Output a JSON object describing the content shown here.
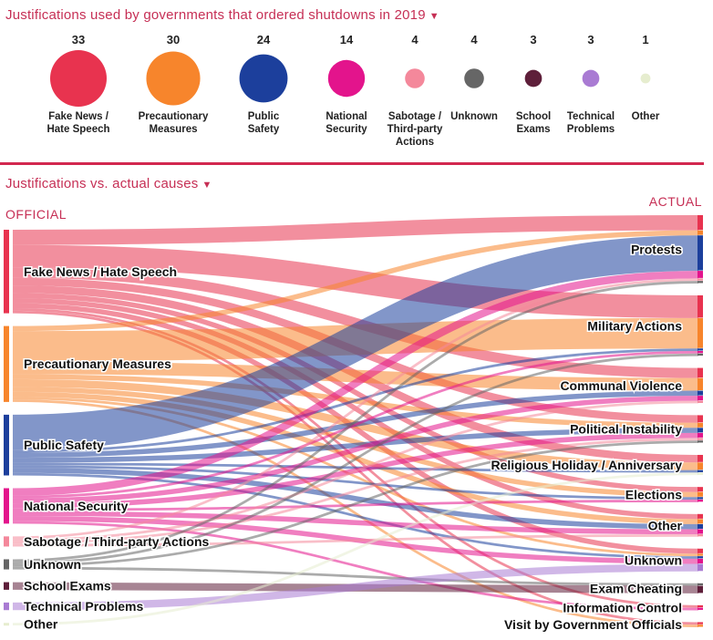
{
  "header": {
    "title": "Justifications used by governments that ordered shutdowns in 2019",
    "title2": "Justifications vs. actual causes",
    "official_label": "OFFICIAL",
    "actual_label": "ACTUAL"
  },
  "chart_data": [
    {
      "type": "bubble",
      "title": "Justifications used by governments that ordered shutdowns in 2019",
      "categories": [
        "Fake News / Hate Speech",
        "Precautionary Measures",
        "Public Safety",
        "National Security",
        "Sabotage / Third-party Actions",
        "Unknown",
        "School Exams",
        "Technical Problems",
        "Other"
      ],
      "display_labels": [
        [
          "Fake News /",
          "Hate Speech"
        ],
        [
          "Precautionary",
          "Measures"
        ],
        [
          "Public",
          "Safety"
        ],
        [
          "National",
          "Security"
        ],
        [
          "Sabotage /",
          "Third-party",
          "Actions"
        ],
        [
          "Unknown"
        ],
        [
          "School",
          "Exams"
        ],
        [
          "Technical",
          "Problems"
        ],
        [
          "Other"
        ]
      ],
      "values": [
        33,
        30,
        24,
        14,
        4,
        4,
        3,
        3,
        1
      ],
      "colors": [
        "#e8334f",
        "#f7852c",
        "#1c3f9c",
        "#e3148c",
        "#f4889b",
        "#666666",
        "#5e1f3a",
        "#a97bd3",
        "#e6edcf"
      ]
    },
    {
      "type": "sankey",
      "title": "Justifications vs. actual causes",
      "sources": [
        {
          "label": "Fake News / Hate Speech",
          "color": "#e8334f"
        },
        {
          "label": "Precautionary Measures",
          "color": "#f7852c"
        },
        {
          "label": "Public Safety",
          "color": "#1c3f9c"
        },
        {
          "label": "National Security",
          "color": "#e3148c"
        },
        {
          "label": "Sabotage / Third-party Actions",
          "color": "#f4889b"
        },
        {
          "label": "Unknown",
          "color": "#666666"
        },
        {
          "label": "School Exams",
          "color": "#5e1f3a"
        },
        {
          "label": "Technical Problems",
          "color": "#a97bd3"
        },
        {
          "label": "Other",
          "color": "#e6edcf"
        }
      ],
      "targets": [
        "Protests",
        "Military Actions",
        "Communal Violence",
        "Political Instability",
        "Religious Holiday / Anniversary",
        "Elections",
        "Other",
        "Unknown",
        "Exam Cheating",
        "Information Control",
        "Visit by Government Officials"
      ],
      "flows": [
        {
          "source": 0,
          "target": 0,
          "value": 6
        },
        {
          "source": 0,
          "target": 1,
          "value": 9
        },
        {
          "source": 0,
          "target": 2,
          "value": 4
        },
        {
          "source": 0,
          "target": 3,
          "value": 3
        },
        {
          "source": 0,
          "target": 4,
          "value": 3
        },
        {
          "source": 0,
          "target": 5,
          "value": 2
        },
        {
          "source": 0,
          "target": 6,
          "value": 2
        },
        {
          "source": 0,
          "target": 7,
          "value": 2
        },
        {
          "source": 0,
          "target": 9,
          "value": 1
        },
        {
          "source": 0,
          "target": 10,
          "value": 1
        },
        {
          "source": 1,
          "target": 0,
          "value": 2
        },
        {
          "source": 1,
          "target": 1,
          "value": 12
        },
        {
          "source": 1,
          "target": 2,
          "value": 5
        },
        {
          "source": 1,
          "target": 3,
          "value": 2
        },
        {
          "source": 1,
          "target": 4,
          "value": 3
        },
        {
          "source": 1,
          "target": 5,
          "value": 2
        },
        {
          "source": 1,
          "target": 6,
          "value": 2
        },
        {
          "source": 1,
          "target": 7,
          "value": 1
        },
        {
          "source": 1,
          "target": 10,
          "value": 1
        },
        {
          "source": 2,
          "target": 0,
          "value": 14
        },
        {
          "source": 2,
          "target": 1,
          "value": 1
        },
        {
          "source": 2,
          "target": 2,
          "value": 2
        },
        {
          "source": 2,
          "target": 3,
          "value": 2
        },
        {
          "source": 2,
          "target": 4,
          "value": 1
        },
        {
          "source": 2,
          "target": 5,
          "value": 1
        },
        {
          "source": 2,
          "target": 6,
          "value": 2
        },
        {
          "source": 2,
          "target": 7,
          "value": 1
        },
        {
          "source": 3,
          "target": 0,
          "value": 3
        },
        {
          "source": 3,
          "target": 1,
          "value": 1
        },
        {
          "source": 3,
          "target": 2,
          "value": 2
        },
        {
          "source": 3,
          "target": 3,
          "value": 2
        },
        {
          "source": 3,
          "target": 5,
          "value": 1
        },
        {
          "source": 3,
          "target": 6,
          "value": 2
        },
        {
          "source": 3,
          "target": 7,
          "value": 2
        },
        {
          "source": 3,
          "target": 9,
          "value": 1
        },
        {
          "source": 4,
          "target": 0,
          "value": 1
        },
        {
          "source": 4,
          "target": 2,
          "value": 1
        },
        {
          "source": 4,
          "target": 3,
          "value": 1
        },
        {
          "source": 4,
          "target": 6,
          "value": 1
        },
        {
          "source": 5,
          "target": 0,
          "value": 1
        },
        {
          "source": 5,
          "target": 1,
          "value": 1
        },
        {
          "source": 5,
          "target": 3,
          "value": 1
        },
        {
          "source": 5,
          "target": 8,
          "value": 1
        },
        {
          "source": 6,
          "target": 8,
          "value": 3
        },
        {
          "source": 7,
          "target": 7,
          "value": 3
        },
        {
          "source": 8,
          "target": 4,
          "value": 1
        }
      ]
    }
  ]
}
